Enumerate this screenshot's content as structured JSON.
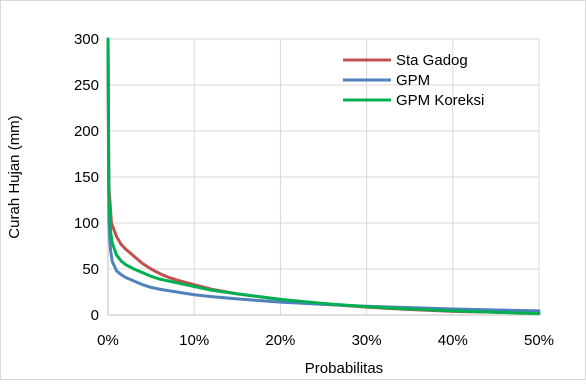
{
  "chart_data": {
    "type": "line",
    "xlabel": "Probabilitas",
    "ylabel": "Curah Hujan (mm)",
    "xlim": [
      0,
      0.5
    ],
    "ylim": [
      0,
      300
    ],
    "x_ticks": [
      0,
      0.1,
      0.2,
      0.3,
      0.4,
      0.5
    ],
    "x_tick_labels": [
      "0%",
      "10%",
      "20%",
      "30%",
      "40%",
      "50%"
    ],
    "y_ticks": [
      0,
      50,
      100,
      150,
      200,
      250,
      300
    ],
    "y_tick_labels": [
      "0",
      "50",
      "100",
      "150",
      "200",
      "250",
      "300"
    ],
    "grid": "both",
    "legend_position": "top-right",
    "series": [
      {
        "name": "Sta Gadog",
        "color": "#c0504d",
        "points": [
          [
            0,
            300
          ],
          [
            0.001,
            140
          ],
          [
            0.004,
            100
          ],
          [
            0.01,
            85
          ],
          [
            0.015,
            77
          ],
          [
            0.02,
            72
          ],
          [
            0.03,
            64
          ],
          [
            0.04,
            56
          ],
          [
            0.05,
            50
          ],
          [
            0.06,
            45
          ],
          [
            0.07,
            41
          ],
          [
            0.08,
            38
          ],
          [
            0.1,
            33
          ],
          [
            0.12,
            28
          ],
          [
            0.15,
            23
          ],
          [
            0.2,
            17
          ],
          [
            0.25,
            12
          ],
          [
            0.3,
            8.5
          ],
          [
            0.35,
            6
          ],
          [
            0.4,
            4
          ],
          [
            0.45,
            3
          ],
          [
            0.5,
            2
          ]
        ]
      },
      {
        "name": "GPM",
        "color": "#4f81bd",
        "points": [
          [
            0,
            300
          ],
          [
            0.001,
            100
          ],
          [
            0.003,
            70
          ],
          [
            0.005,
            58
          ],
          [
            0.01,
            48
          ],
          [
            0.015,
            44
          ],
          [
            0.02,
            41
          ],
          [
            0.03,
            37
          ],
          [
            0.04,
            33
          ],
          [
            0.05,
            30
          ],
          [
            0.06,
            28
          ],
          [
            0.08,
            25
          ],
          [
            0.1,
            22
          ],
          [
            0.12,
            20
          ],
          [
            0.15,
            17.5
          ],
          [
            0.2,
            14
          ],
          [
            0.25,
            11.5
          ],
          [
            0.3,
            9.5
          ],
          [
            0.35,
            8
          ],
          [
            0.4,
            6.5
          ],
          [
            0.45,
            5.5
          ],
          [
            0.5,
            4.5
          ]
        ]
      },
      {
        "name": "GPM Koreksi",
        "color": "#00b050",
        "points": [
          [
            0,
            300
          ],
          [
            0.001,
            130
          ],
          [
            0.003,
            90
          ],
          [
            0.005,
            78
          ],
          [
            0.01,
            65
          ],
          [
            0.015,
            59
          ],
          [
            0.02,
            55
          ],
          [
            0.03,
            50
          ],
          [
            0.04,
            46
          ],
          [
            0.05,
            42
          ],
          [
            0.06,
            39
          ],
          [
            0.08,
            35
          ],
          [
            0.1,
            31
          ],
          [
            0.12,
            27
          ],
          [
            0.15,
            23
          ],
          [
            0.2,
            17
          ],
          [
            0.25,
            12.5
          ],
          [
            0.3,
            9
          ],
          [
            0.35,
            6.5
          ],
          [
            0.4,
            4.5
          ],
          [
            0.45,
            3
          ],
          [
            0.5,
            1.5
          ]
        ]
      }
    ]
  }
}
